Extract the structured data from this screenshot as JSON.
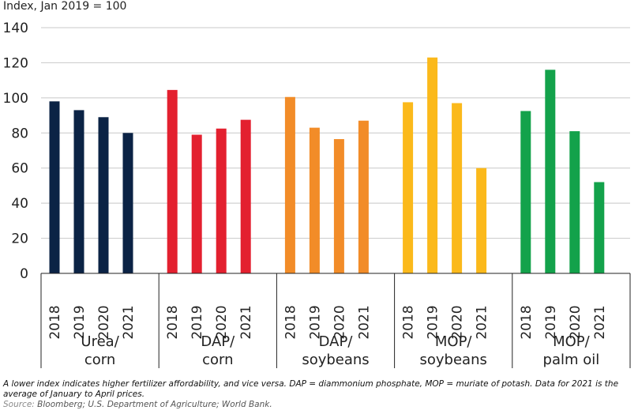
{
  "chart_data": {
    "type": "bar",
    "ylabel": "Index, Jan 2019 = 100",
    "ylim": [
      0,
      140
    ],
    "yticks": [
      0,
      20,
      40,
      60,
      80,
      100,
      120,
      140
    ],
    "grid": true,
    "groups": [
      {
        "label_lines": [
          "Urea/",
          "corn"
        ],
        "color": "#0b2345",
        "categories": [
          "2018",
          "2019",
          "2020",
          "2021"
        ],
        "values": [
          98,
          93,
          89,
          80
        ]
      },
      {
        "label_lines": [
          "DAP/",
          "corn"
        ],
        "color": "#e3202f",
        "categories": [
          "2018",
          "2019",
          "2020",
          "2021"
        ],
        "values": [
          104.5,
          79,
          82.5,
          87.5
        ]
      },
      {
        "label_lines": [
          "DAP/",
          "soybeans"
        ],
        "color": "#f28c28",
        "categories": [
          "2018",
          "2019",
          "2020",
          "2021"
        ],
        "values": [
          100.5,
          83,
          76.5,
          87
        ]
      },
      {
        "label_lines": [
          "MOP/",
          "soybeans"
        ],
        "color": "#fbb91b",
        "categories": [
          "2018",
          "2019",
          "2020",
          "2021"
        ],
        "values": [
          97.5,
          123,
          97,
          60
        ]
      },
      {
        "label_lines": [
          "MOP/",
          "palm oil"
        ],
        "color": "#13a24b",
        "categories": [
          "2018",
          "2019",
          "2020",
          "2021"
        ],
        "values": [
          92.5,
          116,
          81,
          52
        ]
      }
    ]
  },
  "notes": {
    "text": "A lower index indicates higher fertilizer affordability, and vice versa. DAP = diammonium phosphate, MOP = muriate of potash. Data for 2021 is the average of January to April prices.",
    "source_label": "Source:",
    "source_text": " Bloomberg; U.S. Department of Agriculture; World Bank."
  }
}
